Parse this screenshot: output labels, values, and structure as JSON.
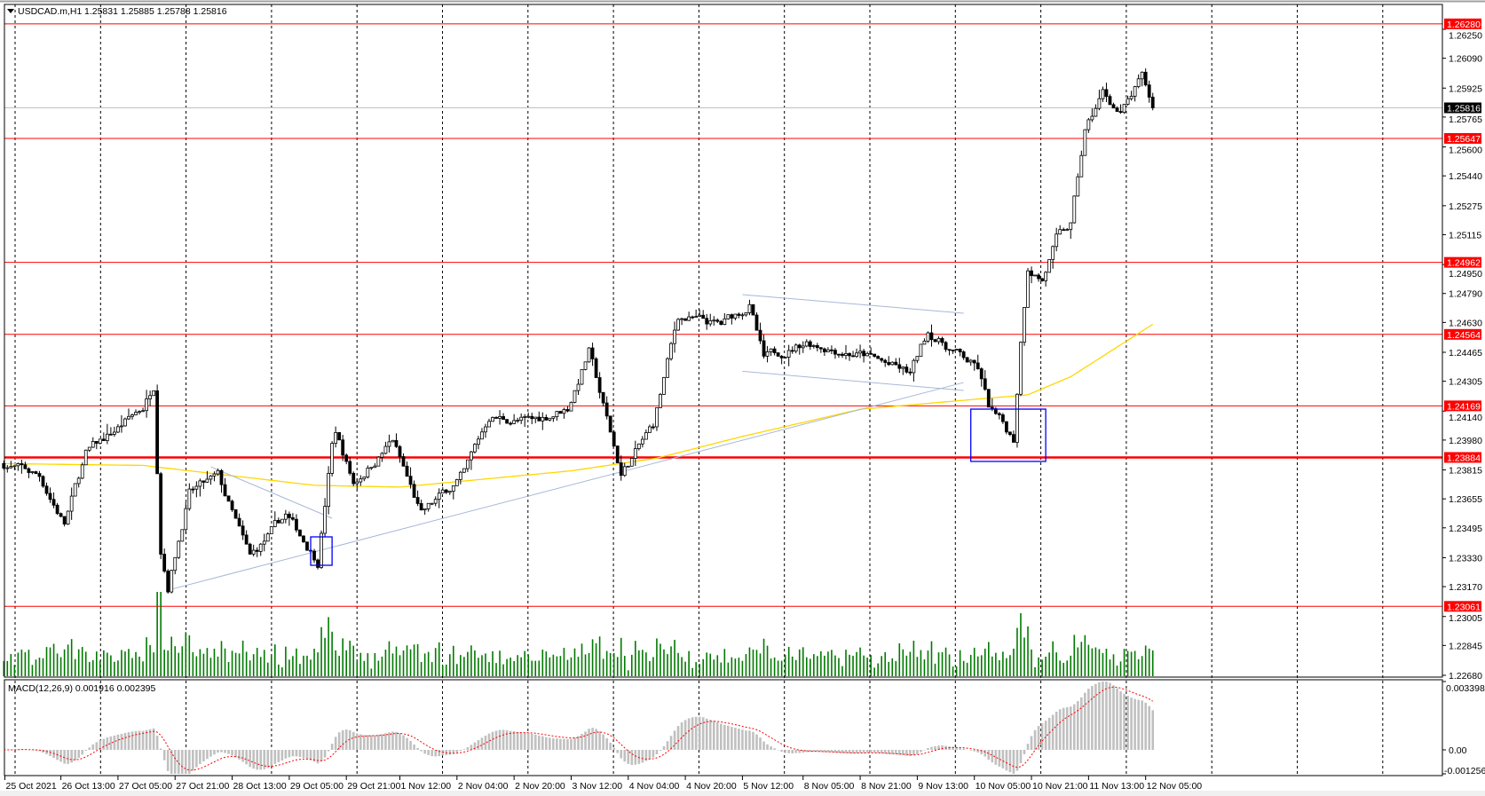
{
  "header": {
    "symbol": "USDCAD.m,H1",
    "ohlc": "1.25831 1.25885 1.25788 1.25816",
    "menu_icon": "triangle-down-icon"
  },
  "colors": {
    "level_line": "#ff0000",
    "moving_average": "#ffd700",
    "trendline": "#a8b8d8",
    "box": "#0000ff",
    "volume": "#007a00",
    "macd_histogram": "#c0c0c0",
    "macd_signal": "#ff0000",
    "current_price": "#000000"
  },
  "price_axis": {
    "ticks": [
      "1.26250",
      "1.26090",
      "1.25925",
      "1.25765",
      "1.25600",
      "1.25440",
      "1.25275",
      "1.25115",
      "1.24950",
      "1.24790",
      "1.24630",
      "1.24465",
      "1.24305",
      "1.24140",
      "1.23980",
      "1.23815",
      "1.23655",
      "1.23495",
      "1.23330",
      "1.23170",
      "1.23005",
      "1.22845",
      "1.22680"
    ],
    "current_price": "1.25816"
  },
  "levels": [
    {
      "price": "1.26280",
      "thick": false
    },
    {
      "price": "1.25647",
      "thick": false
    },
    {
      "price": "1.24962",
      "thick": false
    },
    {
      "price": "1.24564",
      "thick": false
    },
    {
      "price": "1.24169",
      "thick": false
    },
    {
      "price": "1.23884",
      "thick": true
    },
    {
      "price": "1.23061",
      "thick": false
    }
  ],
  "time_axis": {
    "first_label": "25 Oct 2021",
    "labels": [
      "26 Oct 13:00",
      "27 Oct 05:00",
      "27 Oct 21:00",
      "28 Oct 13:00",
      "29 Oct 05:00",
      "29 Oct 21:00",
      "1 Nov 12:00",
      "2 Nov 04:00",
      "2 Nov 20:00",
      "3 Nov 12:00",
      "4 Nov 04:00",
      "4 Nov 20:00",
      "5 Nov 12:00",
      "8 Nov 05:00",
      "8 Nov 21:00",
      "9 Nov 13:00",
      "10 Nov 05:00",
      "10 Nov 21:00",
      "11 Nov 13:00",
      "12 Nov 05:00"
    ]
  },
  "macd": {
    "label": "MACD(12,26,9) 0.001916 0.002395",
    "axis": {
      "top": "0.003398",
      "zero": "0.00",
      "bottom": "-0.001256"
    }
  },
  "chart_data": {
    "type": "candlestick",
    "symbol": "USDCAD.m",
    "timeframe": "H1",
    "ylim": [
      1.2268,
      1.2632
    ],
    "grid": "vertical dashed",
    "close_path": [
      [
        "25 Oct 21:00",
        1.2385
      ],
      [
        "26 Oct 07:00",
        1.2378
      ],
      [
        "26 Oct 14:00",
        1.2352
      ],
      [
        "26 Oct 20:00",
        1.239
      ],
      [
        "27 Oct 12:00",
        1.2416
      ],
      [
        "27 Oct 15:00",
        1.2429
      ],
      [
        "27 Oct 17:00",
        1.234
      ],
      [
        "27 Oct 19:00",
        1.2319
      ],
      [
        "28 Oct 01:00",
        1.2369
      ],
      [
        "28 Oct 09:00",
        1.2377
      ],
      [
        "28 Oct 18:00",
        1.2332
      ],
      [
        "29 Oct 04:00",
        1.2356
      ],
      [
        "29 Oct 13:00",
        1.2332
      ],
      [
        "29 Oct 17:00",
        1.2395
      ],
      [
        "29 Oct 18:00",
        1.2403
      ],
      [
        "29 Oct 23:00",
        1.2374
      ],
      [
        "1 Nov 10:00",
        1.2398
      ],
      [
        "1 Nov 18:00",
        1.2356
      ],
      [
        "2 Nov 06:00",
        1.2379
      ],
      [
        "2 Nov 13:00",
        1.2411
      ],
      [
        "3 Nov 01:00",
        1.2408
      ],
      [
        "3 Nov 11:00",
        1.2416
      ],
      [
        "3 Nov 17:00",
        1.2447
      ],
      [
        "4 Nov 02:00",
        1.2379
      ],
      [
        "4 Nov 11:00",
        1.2406
      ],
      [
        "4 Nov 18:00",
        1.2466
      ],
      [
        "5 Nov 06:00",
        1.2461
      ],
      [
        "5 Nov 14:00",
        1.2473
      ],
      [
        "5 Nov 18:00",
        1.2442
      ],
      [
        "8 Nov 06:00",
        1.2453
      ],
      [
        "8 Nov 22:00",
        1.2445
      ],
      [
        "9 Nov 11:00",
        1.2434
      ],
      [
        "9 Nov 16:00",
        1.2458
      ],
      [
        "10 Nov 06:00",
        1.2437
      ],
      [
        "10 Nov 09:00",
        1.2416
      ],
      [
        "10 Nov 16:00",
        1.2398
      ],
      [
        "10 Nov 18:00",
        1.2453
      ],
      [
        "10 Nov 20:00",
        1.2495
      ],
      [
        "11 Nov 00:00",
        1.2487
      ],
      [
        "11 Nov 04:00",
        1.2508
      ],
      [
        "11 Nov 08:00",
        1.2516
      ],
      [
        "11 Nov 12:00",
        1.2568
      ],
      [
        "11 Nov 17:00",
        1.259
      ],
      [
        "11 Nov 22:00",
        1.2578
      ],
      [
        "12 Nov 04:00",
        1.2597
      ],
      [
        "12 Nov 07:00",
        1.25816
      ]
    ],
    "moving_average": [
      [
        "25 Oct 21:00",
        1.2385
      ],
      [
        "27 Oct 12:00",
        1.2384
      ],
      [
        "29 Oct 12:00",
        1.2373
      ],
      [
        "1 Nov 12:00",
        1.2372
      ],
      [
        "3 Nov 12:00",
        1.2381
      ],
      [
        "4 Nov 12:00",
        1.2388
      ],
      [
        "5 Nov 12:00",
        1.24
      ],
      [
        "8 Nov 21:00",
        1.2415
      ],
      [
        "10 Nov 08:00",
        1.2421
      ],
      [
        "10 Nov 20:00",
        1.2423
      ],
      [
        "11 Nov 08:00",
        1.2433
      ],
      [
        "12 Nov 07:00",
        1.2462
      ]
    ],
    "trendlines": [
      {
        "from": [
          "27 Oct 20:00",
          1.23156
        ],
        "to": [
          "10 Nov 02:00",
          1.24298
        ]
      },
      {
        "from": [
          "28 Oct 07:00",
          1.23832
        ],
        "to": [
          "29 Oct 17:00",
          1.23548
        ]
      },
      {
        "from": [
          "5 Nov 12:00",
          1.24784
        ],
        "to": [
          "10 Nov 02:00",
          1.24681
        ]
      },
      {
        "from": [
          "5 Nov 12:00",
          1.2436
        ],
        "to": [
          "10 Nov 02:00",
          1.24254
        ]
      }
    ],
    "boxes": [
      {
        "from": [
          "29 Oct 11:00",
          1.23445
        ],
        "to": [
          "29 Oct 17:00",
          1.23288
        ]
      },
      {
        "from": [
          "10 Nov 04:00",
          1.24151
        ],
        "to": [
          "11 Nov 01:00",
          1.23862
        ]
      }
    ]
  }
}
